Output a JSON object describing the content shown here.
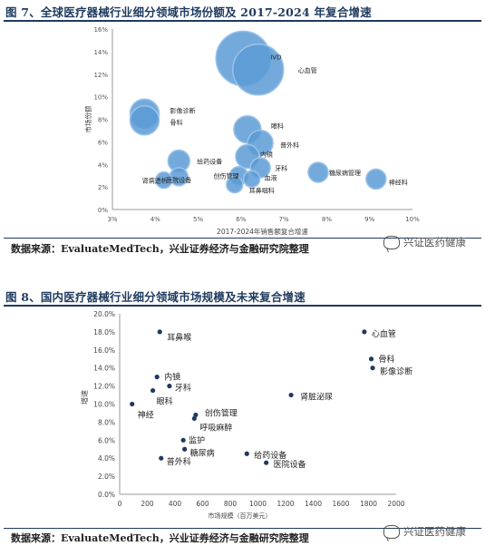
{
  "figure7": {
    "title": "图 7、全球医疗器械行业细分领域市场份额及 2017-2024 年复合增速",
    "source": "数据来源：EvaluateMedTech，兴业证券经济与金融研究院整理",
    "watermark": "兴证医药健康"
  },
  "figure8": {
    "title": "图 8、国内医疗器械行业细分领域市场规模及未来复合增速",
    "source": "数据来源：EvaluateMedTech，兴业证券经济与金融研究院整理",
    "watermark": "兴证医药健康"
  },
  "colors": {
    "title": "#1f3a5f",
    "bubble_fill": "#5b9bd5",
    "bubble_stroke": "#9cc3e8",
    "dot": "#1f3a5f"
  },
  "chart_data": [
    {
      "type": "bubble",
      "xlabel": "2017-2024年销售额复合增速",
      "ylabel": "市场份额",
      "xlim": [
        0.03,
        0.1
      ],
      "ylim": [
        0.0,
        0.16
      ],
      "x_ticks": [
        "3%",
        "4%",
        "5%",
        "6%",
        "7%",
        "8%",
        "9%",
        "10%"
      ],
      "y_ticks": [
        "0%",
        "2%",
        "4%",
        "6%",
        "8%",
        "10%",
        "12%",
        "14%",
        "16%"
      ],
      "grid": false,
      "points": [
        {
          "label": "IVD",
          "x": 0.0605,
          "y": 0.134,
          "r": 30
        },
        {
          "label": "心血管",
          "x": 0.064,
          "y": 0.124,
          "r": 28
        },
        {
          "label": "影像诊断",
          "x": 0.0375,
          "y": 0.085,
          "r": 16
        },
        {
          "label": "骨科",
          "x": 0.0375,
          "y": 0.079,
          "r": 16
        },
        {
          "label": "眼科",
          "x": 0.0615,
          "y": 0.071,
          "r": 15
        },
        {
          "label": "普外科",
          "x": 0.0645,
          "y": 0.059,
          "r": 14
        },
        {
          "label": "内镜",
          "x": 0.0615,
          "y": 0.047,
          "r": 13
        },
        {
          "label": "给药设备",
          "x": 0.0455,
          "y": 0.043,
          "r": 12
        },
        {
          "label": "牙科",
          "x": 0.0645,
          "y": 0.037,
          "r": 11
        },
        {
          "label": "糖尿病管理",
          "x": 0.078,
          "y": 0.033,
          "r": 11
        },
        {
          "label": "创伤管理",
          "x": 0.0595,
          "y": 0.03,
          "r": 10
        },
        {
          "label": "医院设备",
          "x": 0.0455,
          "y": 0.029,
          "r": 10
        },
        {
          "label": "神经科",
          "x": 0.0915,
          "y": 0.027,
          "r": 11
        },
        {
          "label": "肾病透析",
          "x": 0.042,
          "y": 0.026,
          "r": 9
        },
        {
          "label": "耳鼻咽科",
          "x": 0.0585,
          "y": 0.022,
          "r": 9
        },
        {
          "label": "血液",
          "x": 0.0625,
          "y": 0.027,
          "r": 9
        }
      ]
    },
    {
      "type": "scatter",
      "xlabel": "市场规模（百万美元）",
      "ylabel": "增速",
      "xlim": [
        0,
        2000
      ],
      "ylim": [
        0.0,
        0.2
      ],
      "x_ticks": [
        "0",
        "200",
        "400",
        "600",
        "800",
        "1000",
        "1200",
        "1400",
        "1600",
        "1800",
        "2000"
      ],
      "y_ticks": [
        "0.0%",
        "2.0%",
        "4.0%",
        "6.0%",
        "8.0%",
        "10.0%",
        "12.0%",
        "14.0%",
        "16.0%",
        "18.0%",
        "20.0%"
      ],
      "grid": false,
      "points": [
        {
          "label": "耳鼻喉",
          "x": 290,
          "y": 0.18
        },
        {
          "label": "心血管",
          "x": 1770,
          "y": 0.18
        },
        {
          "label": "骨科",
          "x": 1820,
          "y": 0.15
        },
        {
          "label": "影像诊断",
          "x": 1830,
          "y": 0.14
        },
        {
          "label": "内镜",
          "x": 270,
          "y": 0.13
        },
        {
          "label": "牙科",
          "x": 360,
          "y": 0.12
        },
        {
          "label": "眼科",
          "x": 240,
          "y": 0.115
        },
        {
          "label": "肾脏泌尿",
          "x": 1240,
          "y": 0.11
        },
        {
          "label": "神经",
          "x": 90,
          "y": 0.1
        },
        {
          "label": "创伤管理",
          "x": 550,
          "y": 0.088
        },
        {
          "label": "呼吸麻醉",
          "x": 540,
          "y": 0.084
        },
        {
          "label": "监护",
          "x": 460,
          "y": 0.06
        },
        {
          "label": "糖尿病",
          "x": 470,
          "y": 0.05
        },
        {
          "label": "给药设备",
          "x": 920,
          "y": 0.045
        },
        {
          "label": "普外科",
          "x": 300,
          "y": 0.04
        },
        {
          "label": "医院设备",
          "x": 1060,
          "y": 0.035
        }
      ]
    }
  ]
}
